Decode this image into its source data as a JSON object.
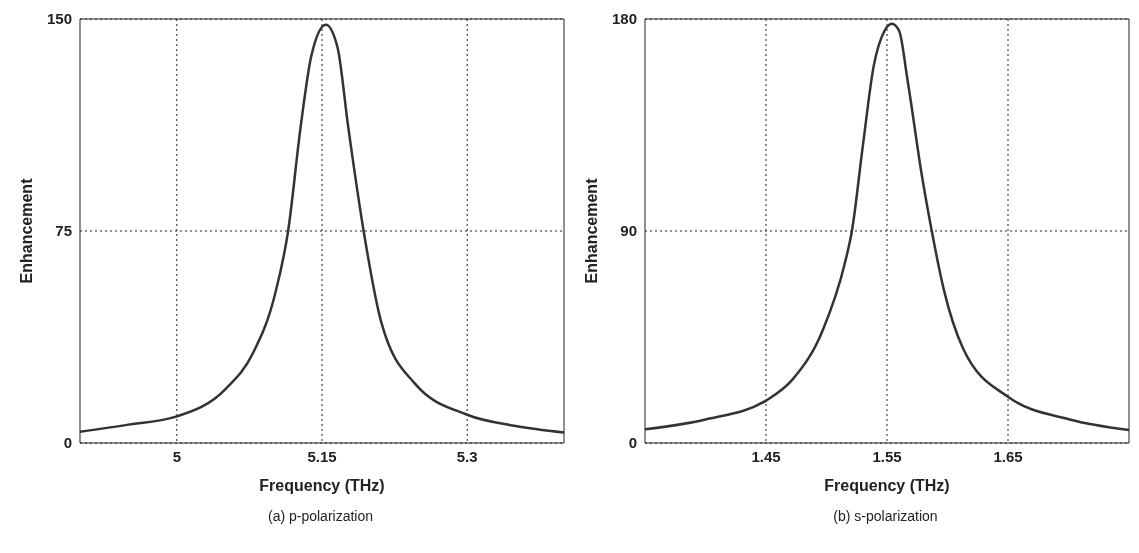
{
  "chart_data": [
    {
      "type": "line",
      "xlabel": "Frequency (THz)",
      "ylabel": "Enhancement",
      "annotations": [
        "(a) p-polarization"
      ],
      "xlim": [
        4.9,
        5.4
      ],
      "xticks": [
        5,
        5.15,
        5.3
      ],
      "ylim": [
        0,
        150
      ],
      "yticks": [
        0,
        75,
        150
      ],
      "grid": true,
      "marker": "none",
      "line_style": "solid",
      "series": [
        {
          "color": "#333333",
          "x": [
            4.9,
            4.95,
            5.0,
            5.05,
            5.079,
            5.101,
            5.115,
            5.128,
            5.139,
            5.154,
            5.166,
            5.177,
            5.193,
            5.211,
            5.246,
            5.3,
            5.35,
            5.4
          ],
          "values": [
            4,
            6.5,
            9.4,
            19,
            32,
            52,
            75,
            112,
            137,
            148,
            140,
            112,
            75,
            43,
            21,
            10,
            6,
            3.7
          ]
        }
      ]
    },
    {
      "type": "line",
      "xlabel": "Frequency (THz)",
      "ylabel": "Enhancement",
      "annotations": [
        "(b) s-polarization"
      ],
      "xlim": [
        1.35,
        1.75
      ],
      "xticks": [
        1.45,
        1.55,
        1.65
      ],
      "ylim": [
        0,
        180
      ],
      "yticks": [
        0,
        90,
        180
      ],
      "grid": true,
      "marker": "none",
      "line_style": "solid",
      "series": [
        {
          "color": "#333333",
          "x": [
            1.35,
            1.4,
            1.45,
            1.472,
            1.497,
            1.515,
            1.521,
            1.53,
            1.539,
            1.548,
            1.554,
            1.56,
            1.567,
            1.579,
            1.587,
            1.597,
            1.613,
            1.65,
            1.701,
            1.75
          ],
          "values": [
            5.8,
            10,
            18,
            27,
            48,
            76,
            90,
            126,
            160,
            175,
            178,
            175,
            154,
            113,
            90,
            65,
            40,
            19.6,
            10,
            5.5
          ]
        }
      ]
    }
  ]
}
